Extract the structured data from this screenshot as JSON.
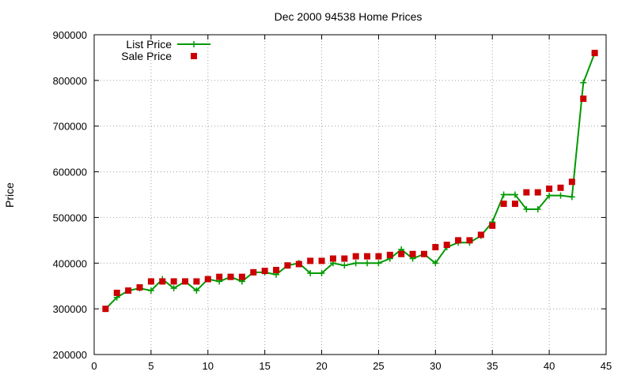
{
  "chart_data": {
    "type": "line",
    "title": "Dec 2000 94538 Home Prices",
    "xlabel": "",
    "ylabel": "Price",
    "xlim": [
      0,
      45
    ],
    "ylim": [
      200000,
      900000
    ],
    "x_ticks": [
      0,
      5,
      10,
      15,
      20,
      25,
      30,
      35,
      40,
      45
    ],
    "y_ticks": [
      200000,
      300000,
      400000,
      500000,
      600000,
      700000,
      800000,
      900000
    ],
    "grid": true,
    "legend_position": "top-left",
    "series": [
      {
        "name": "List Price",
        "style": "line+cross",
        "color": "#009900",
        "x": [
          1,
          2,
          3,
          4,
          5,
          6,
          7,
          8,
          9,
          10,
          11,
          12,
          13,
          14,
          15,
          16,
          17,
          18,
          19,
          20,
          21,
          22,
          23,
          24,
          25,
          26,
          27,
          28,
          29,
          30,
          31,
          32,
          33,
          34,
          35,
          36,
          37,
          38,
          39,
          40,
          41,
          42,
          43,
          44
        ],
        "y": [
          300000,
          325000,
          340000,
          345000,
          340000,
          365000,
          345000,
          360000,
          340000,
          365000,
          360000,
          370000,
          360000,
          380000,
          380000,
          375000,
          395000,
          400000,
          378000,
          378000,
          400000,
          395000,
          400000,
          400000,
          400000,
          410000,
          430000,
          410000,
          420000,
          400000,
          435000,
          445000,
          445000,
          460000,
          490000,
          550000,
          550000,
          518000,
          518000,
          548000,
          548000,
          545000,
          795000,
          860000
        ]
      },
      {
        "name": "Sale Price",
        "style": "square",
        "color": "#cc0000",
        "x": [
          1,
          2,
          3,
          4,
          5,
          6,
          7,
          8,
          9,
          10,
          11,
          12,
          13,
          14,
          15,
          16,
          17,
          18,
          19,
          20,
          21,
          22,
          23,
          24,
          25,
          26,
          27,
          28,
          29,
          30,
          31,
          32,
          33,
          34,
          35,
          36,
          37,
          38,
          39,
          40,
          41,
          42,
          43,
          44
        ],
        "y": [
          300000,
          335000,
          340000,
          347000,
          360000,
          360000,
          360000,
          360000,
          360000,
          365000,
          370000,
          370000,
          370000,
          380000,
          383000,
          385000,
          395000,
          398000,
          405000,
          405000,
          410000,
          410000,
          415000,
          415000,
          415000,
          418000,
          420000,
          420000,
          420000,
          435000,
          440000,
          450000,
          450000,
          462000,
          482000,
          530000,
          530000,
          555000,
          555000,
          563000,
          565000,
          578000,
          760000,
          860000
        ]
      }
    ]
  }
}
